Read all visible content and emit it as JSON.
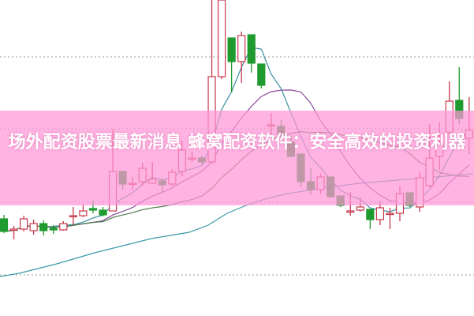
{
  "title": "场外配资股票最新消息 蜂窝配资软件：安全高效的投资利器",
  "colors": {
    "rise": "#c8374a",
    "fall": "#1e9a2e",
    "banner": "#ffa0d8",
    "ma5": "#3a8fa0",
    "ma10": "#8a4a9a",
    "ma20": "#4a7a4a",
    "ma_long": "#3a9aa8",
    "grid": "#9a9a9a"
  },
  "chart_data": {
    "type": "candlestick",
    "grid": true,
    "ohlc_order": [
      "open",
      "high",
      "low",
      "close"
    ],
    "candles": [
      [
        17.3,
        17.8,
        15.5,
        15.7
      ],
      [
        16.0,
        16.4,
        14.7,
        16.0
      ],
      [
        16.0,
        17.7,
        15.7,
        17.3
      ],
      [
        15.8,
        17.2,
        15.3,
        16.7
      ],
      [
        16.7,
        17.1,
        15.2,
        15.8
      ],
      [
        16.1,
        16.5,
        15.4,
        15.9
      ],
      [
        15.9,
        17.0,
        15.8,
        16.7
      ],
      [
        17.7,
        18.8,
        16.5,
        17.7
      ],
      [
        17.7,
        19.1,
        17.5,
        18.3
      ],
      [
        18.6,
        19.6,
        18.0,
        18.4
      ],
      [
        18.4,
        18.8,
        17.6,
        17.8
      ],
      [
        18.3,
        28.7,
        18.3,
        23.3
      ],
      [
        23.3,
        23.3,
        21.0,
        21.7
      ],
      [
        21.8,
        22.6,
        21.0,
        21.8
      ],
      [
        22.0,
        24.4,
        21.5,
        23.7
      ],
      [
        21.8,
        24.5,
        21.7,
        22.3
      ],
      [
        22.1,
        22.4,
        20.7,
        21.6
      ],
      [
        21.7,
        23.6,
        21.4,
        23.2
      ],
      [
        23.3,
        27.2,
        22.7,
        26.0
      ],
      [
        25.0,
        25.8,
        24.5,
        25.0
      ],
      [
        25.0,
        25.3,
        24.2,
        24.5
      ],
      [
        24.5,
        45.0,
        24.3,
        35.3
      ],
      [
        35.3,
        45.0,
        35.0,
        45.0
      ],
      [
        40.2,
        40.2,
        33.3,
        37.2
      ],
      [
        37.2,
        41.0,
        34.5,
        40.5
      ],
      [
        40.6,
        40.6,
        35.8,
        37.0
      ],
      [
        36.9,
        36.9,
        33.8,
        34.2
      ],
      [
        29.2,
        30.7,
        28.0,
        29.2
      ],
      [
        29.0,
        29.8,
        27.0,
        28.0
      ],
      [
        27.0,
        27.8,
        25.2,
        25.2
      ],
      [
        25.5,
        25.5,
        21.3,
        22.0
      ],
      [
        22.0,
        23.8,
        20.3,
        21.0
      ],
      [
        21.0,
        23.0,
        20.5,
        22.6
      ],
      [
        22.6,
        22.6,
        20.0,
        20.1
      ],
      [
        20.2,
        20.2,
        18.8,
        19.0
      ],
      [
        18.3,
        20.7,
        17.7,
        18.3
      ],
      [
        18.4,
        20.0,
        18.2,
        18.8
      ],
      [
        18.5,
        18.5,
        16.0,
        17.2
      ],
      [
        17.2,
        19.5,
        16.5,
        18.7
      ],
      [
        18.0,
        18.7,
        16.0,
        18.0
      ],
      [
        18.0,
        21.5,
        17.0,
        20.5
      ],
      [
        20.6,
        20.6,
        18.8,
        19.0
      ],
      [
        18.8,
        23.2,
        18.2,
        22.5
      ],
      [
        21.5,
        29.3,
        21.3,
        25.0
      ],
      [
        25.2,
        29.5,
        23.5,
        26.8
      ],
      [
        28.2,
        34.7,
        28.0,
        32.2
      ],
      [
        32.3,
        36.5,
        29.3,
        30.0
      ],
      [
        27.5,
        32.7,
        25.5,
        28.5
      ]
    ],
    "moving_average_long": [
      10.0,
      10.4,
      11.0,
      11.6,
      12.3,
      13.0,
      13.6,
      14.2,
      14.8,
      15.2,
      15.6,
      16.5,
      18.0,
      19.0,
      19.8,
      20.4,
      20.8,
      21.2,
      21.5,
      21.8,
      22.0,
      22.2,
      22.4,
      22.6,
      22.8,
      23.0
    ],
    "moving_average_windows": [
      5,
      10,
      20
    ]
  }
}
